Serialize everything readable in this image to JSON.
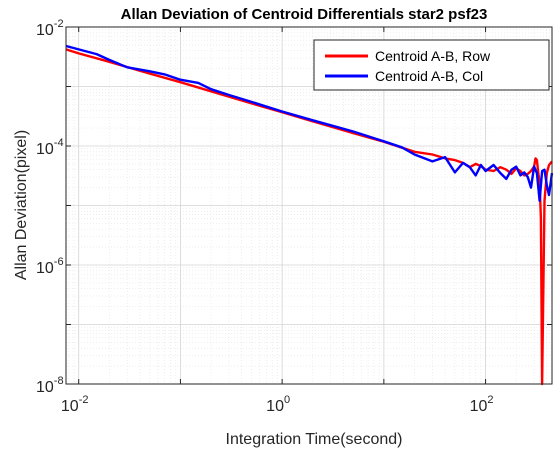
{
  "chart_data": {
    "type": "line",
    "title": "Allan Deviation of Centroid Differentials star2 psf23",
    "xlabel": "Integration Time(second)",
    "ylabel": "Allan Deviation(pixel)",
    "x_scale": "log",
    "y_scale": "log",
    "xlim": [
      0.0075,
      450
    ],
    "ylim": [
      1e-08,
      0.01
    ],
    "x_ticks": [
      {
        "value": 0.01,
        "base": "10",
        "exp": "-2"
      },
      {
        "value": 1,
        "base": "10",
        "exp": "0"
      },
      {
        "value": 100,
        "base": "10",
        "exp": "2"
      }
    ],
    "y_ticks": [
      {
        "value": 1e-08,
        "base": "10",
        "exp": "-8"
      },
      {
        "value": 1e-06,
        "base": "10",
        "exp": "-6"
      },
      {
        "value": 0.0001,
        "base": "10",
        "exp": "-4"
      },
      {
        "value": 0.01,
        "base": "10",
        "exp": "-2"
      }
    ],
    "grid": true,
    "minor_grid": true,
    "legend_position": "top-right",
    "series": [
      {
        "name": "Centroid A-B, Row",
        "color": "#ff0000",
        "x": [
          0.0075,
          0.01,
          0.02,
          0.05,
          0.1,
          0.2,
          0.5,
          1,
          2,
          5,
          10,
          20,
          30,
          40,
          50,
          60,
          70,
          80,
          90,
          100,
          120,
          140,
          160,
          180,
          200,
          220,
          240,
          260,
          280,
          300,
          310,
          320,
          330,
          340,
          350,
          360,
          380,
          400,
          420,
          450
        ],
        "y": [
          0.0042,
          0.0036,
          0.0026,
          0.00165,
          0.00118,
          0.00083,
          0.00052,
          0.00037,
          0.00026,
          0.000165,
          0.000118,
          8e-05,
          7.2e-05,
          6.2e-05,
          5.8e-05,
          5.2e-05,
          4.4e-05,
          5e-05,
          4.6e-05,
          4e-05,
          3.8e-05,
          4.4e-05,
          4e-05,
          3.4e-05,
          4.2e-05,
          3.8e-05,
          3.2e-05,
          3.4e-05,
          3.8e-05,
          4.5e-05,
          6.2e-05,
          5.8e-05,
          3.5e-05,
          2.5e-05,
          6e-06,
          1e-08,
          1.2e-05,
          3.5e-05,
          4.8e-05,
          5.5e-05
        ]
      },
      {
        "name": "Centroid A-B, Col",
        "color": "#0000ff",
        "x": [
          0.0075,
          0.01,
          0.015,
          0.02,
          0.03,
          0.05,
          0.07,
          0.1,
          0.15,
          0.2,
          0.3,
          0.5,
          1,
          2,
          5,
          10,
          15,
          20,
          30,
          40,
          50,
          60,
          70,
          80,
          90,
          100,
          120,
          140,
          160,
          180,
          200,
          220,
          240,
          260,
          280,
          300,
          320,
          340,
          360,
          380,
          400,
          420,
          450
        ],
        "y": [
          0.0048,
          0.0042,
          0.0035,
          0.0028,
          0.0021,
          0.0018,
          0.0016,
          0.0013,
          0.00115,
          0.0009,
          0.00072,
          0.00055,
          0.00038,
          0.00027,
          0.000175,
          0.00012,
          9.5e-05,
          7.2e-05,
          5.5e-05,
          6.5e-05,
          3.6e-05,
          5.2e-05,
          4.4e-05,
          3.2e-05,
          4.8e-05,
          3.8e-05,
          4.8e-05,
          3.5e-05,
          2.8e-05,
          4e-05,
          4.5e-05,
          3.2e-05,
          3.6e-05,
          3e-05,
          2e-05,
          4.5e-05,
          3.5e-05,
          1.2e-05,
          3.8e-05,
          4e-05,
          2.2e-05,
          1.5e-05,
          3.5e-05
        ]
      }
    ]
  }
}
